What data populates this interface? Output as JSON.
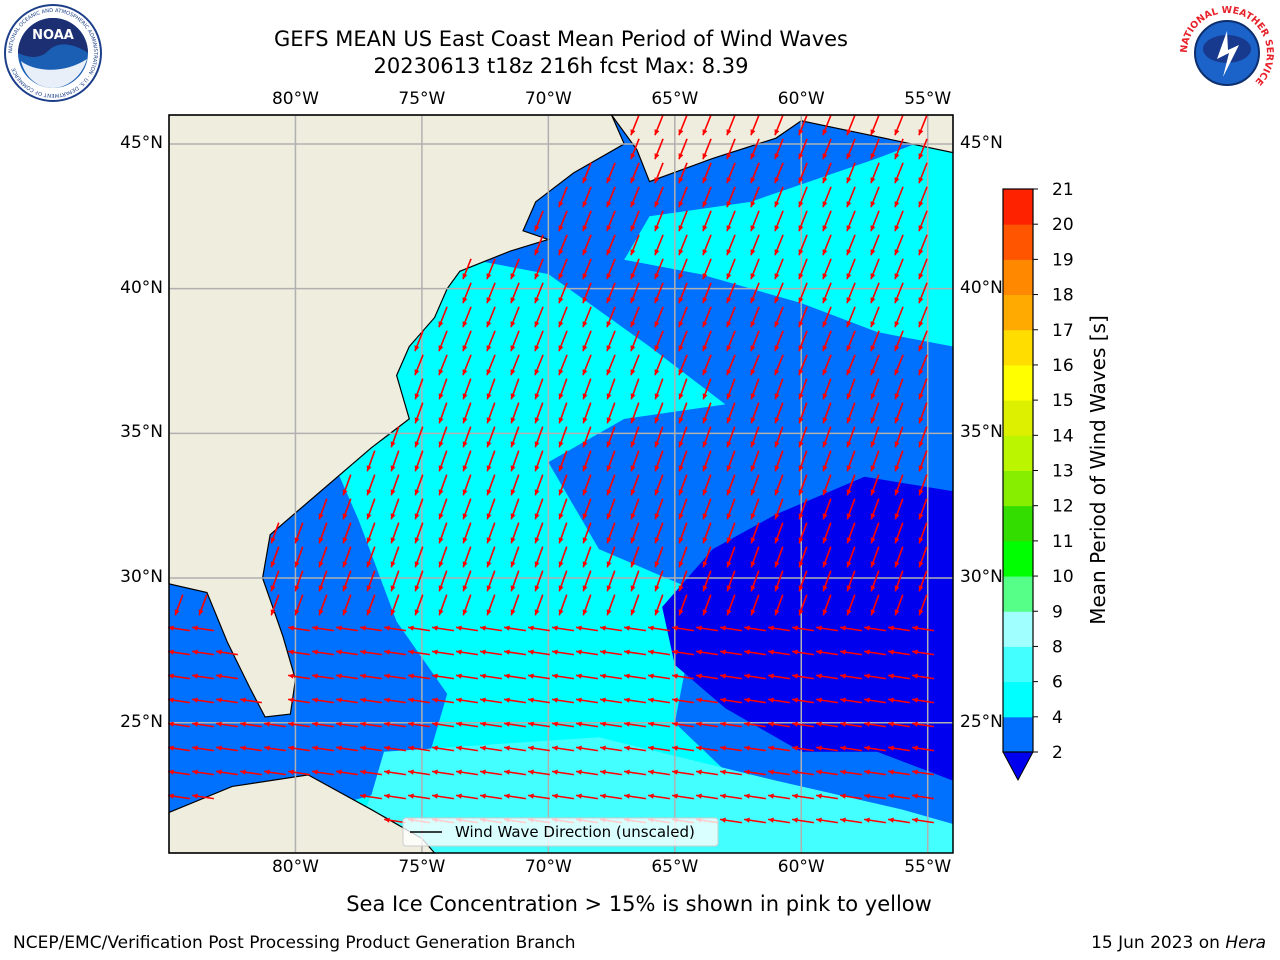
{
  "header": {
    "title": "GEFS MEAN US East Coast Mean Period of Wind Waves",
    "subtitle": "20230613 t18z 216h fcst   Max: 8.39"
  },
  "logos": {
    "noaa_text": "NOAA",
    "noaa_ring_text": "NATIONAL OCEANIC AND ATMOSPHERIC ADMINISTRATION · U.S. DEPARTMENT OF COMMERCE",
    "nws_ring_text": "NATIONAL WEATHER SERVICE"
  },
  "map": {
    "lon_range": [
      -85,
      -54
    ],
    "lat_range": [
      20.5,
      46
    ],
    "lon_ticks": [
      "80°W",
      "75°W",
      "70°W",
      "65°W",
      "60°W",
      "55°W"
    ],
    "lat_ticks": [
      "45°N",
      "40°N",
      "35°N",
      "30°N",
      "25°N"
    ],
    "land_color": "#efedde",
    "grid": true,
    "vector_color": "#ff0000",
    "legend_text": "Wind Wave Direction (unscaled)"
  },
  "colorbar": {
    "label": "Mean Period of Wind Waves [s]",
    "levels": [
      "2",
      "4",
      "6",
      "8",
      "9",
      "10",
      "11",
      "12",
      "13",
      "14",
      "15",
      "16",
      "17",
      "18",
      "19",
      "20",
      "21"
    ],
    "colors": [
      "#0070ff",
      "#00ffff",
      "#44ffff",
      "#a0ffff",
      "#55ff88",
      "#00ff00",
      "#33dd00",
      "#88ee00",
      "#bbf500",
      "#ddf000",
      "#ffff00",
      "#ffdd00",
      "#ffaa00",
      "#ff8800",
      "#ff5500",
      "#ff2200"
    ],
    "under_color": "#0000ee"
  },
  "footer": {
    "note": "Sea Ice Concentration > 15% is shown in pink to yellow",
    "credit": "NCEP/EMC/Verification Post Processing Product Generation Branch",
    "date": "15 Jun 2023 on",
    "machine": "Hera"
  }
}
